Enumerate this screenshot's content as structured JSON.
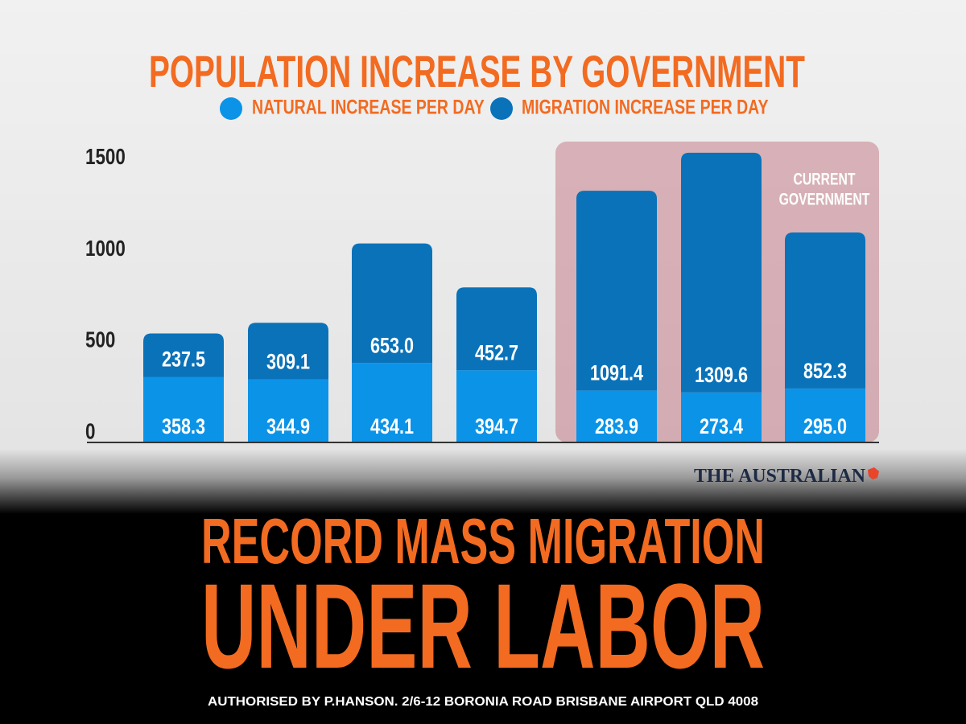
{
  "chart_data": {
    "type": "stacked-bar",
    "title": "POPULATION INCREASE BY GOVERNMENT",
    "categories": [
      null,
      null,
      null,
      null,
      null,
      null,
      null
    ],
    "series": [
      {
        "name": "NATURAL INCREASE PER DAY",
        "color": "#0b93e8",
        "values": [
          358.3,
          344.9,
          434.1,
          394.7,
          283.9,
          273.4,
          295
        ],
        "value_labels": [
          "358.3",
          "344.9",
          "434.1",
          "394.7",
          "283.9",
          "273.4",
          "295.0"
        ]
      },
      {
        "name": "MIGRATION INCREASE PER DAY",
        "color": "#0a72b9",
        "values": [
          237.5,
          309.1,
          653,
          452.7,
          1091.4,
          1309.6,
          852.3
        ],
        "value_labels": [
          "237.5",
          "309.1",
          "653.0",
          "452.7",
          "1091.4",
          "1309.6",
          "852.3"
        ]
      }
    ],
    "ylim": [
      0,
      1600
    ],
    "yticks": [
      0,
      500,
      1000,
      1500
    ],
    "grid": false,
    "annotation": [
      "CURRENT",
      "GOVERNMENT"
    ]
  },
  "source": "THE AUSTRALIAN",
  "headline": [
    "RECORD MASS MIGRATION",
    "UNDER LABOR"
  ],
  "footer": "AUTHORISED BY P.HANSON. 2/6-12 BORONIA ROAD BRISBANE AIRPORT QLD 4008"
}
